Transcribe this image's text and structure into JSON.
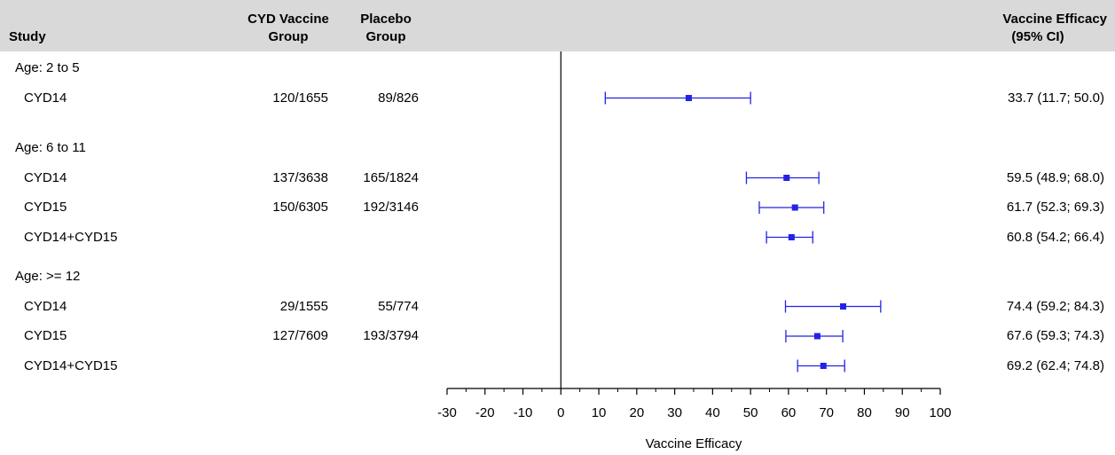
{
  "header": {
    "study": "Study",
    "vaccine_line1": "CYD Vaccine",
    "vaccine_line2": "Group",
    "placebo_line1": "Placebo",
    "placebo_line2": "Group",
    "efficacy_line1": "Vaccine Efficacy",
    "efficacy_line2": "(95% CI)"
  },
  "groups": [
    {
      "label": "Age: 2 to 5",
      "rows": [
        {
          "study": "CYD14",
          "vaccine": "120/1655",
          "placebo": "89/826",
          "ci_text": "33.7 (11.7; 50.0)",
          "estimate": 33.7,
          "lower": 11.7,
          "upper": 50.0
        }
      ]
    },
    {
      "label": "Age: 6 to 11",
      "rows": [
        {
          "study": "CYD14",
          "vaccine": "137/3638",
          "placebo": "165/1824",
          "ci_text": "59.5 (48.9; 68.0)",
          "estimate": 59.5,
          "lower": 48.9,
          "upper": 68.0
        },
        {
          "study": "CYD15",
          "vaccine": "150/6305",
          "placebo": "192/3146",
          "ci_text": "61.7 (52.3; 69.3)",
          "estimate": 61.7,
          "lower": 52.3,
          "upper": 69.3
        },
        {
          "study": "CYD14+CYD15",
          "vaccine": "",
          "placebo": "",
          "ci_text": "60.8 (54.2; 66.4)",
          "estimate": 60.8,
          "lower": 54.2,
          "upper": 66.4
        }
      ]
    },
    {
      "label": "Age: >= 12",
      "rows": [
        {
          "study": "CYD14",
          "vaccine": "29/1555",
          "placebo": "55/774",
          "ci_text": "74.4 (59.2; 84.3)",
          "estimate": 74.4,
          "lower": 59.2,
          "upper": 84.3
        },
        {
          "study": "CYD15",
          "vaccine": "127/7609",
          "placebo": "193/3794",
          "ci_text": "67.6 (59.3; 74.3)",
          "estimate": 67.6,
          "lower": 59.3,
          "upper": 74.3
        },
        {
          "study": "CYD14+CYD15",
          "vaccine": "",
          "placebo": "",
          "ci_text": "69.2 (62.4; 74.8)",
          "estimate": 69.2,
          "lower": 62.4,
          "upper": 74.8
        }
      ]
    }
  ],
  "chart_data": {
    "type": "scatter",
    "subtype": "forest-plot",
    "title": "",
    "xlabel": "Vaccine Efficacy",
    "ylabel": "",
    "xlim": [
      -30,
      100
    ],
    "xticks": [
      -30,
      -20,
      -10,
      0,
      10,
      20,
      30,
      40,
      50,
      60,
      70,
      80,
      90,
      100
    ],
    "reference_line": 0,
    "grid": false,
    "colors": {
      "interval": "#2323e6",
      "reference": "#000000"
    }
  }
}
